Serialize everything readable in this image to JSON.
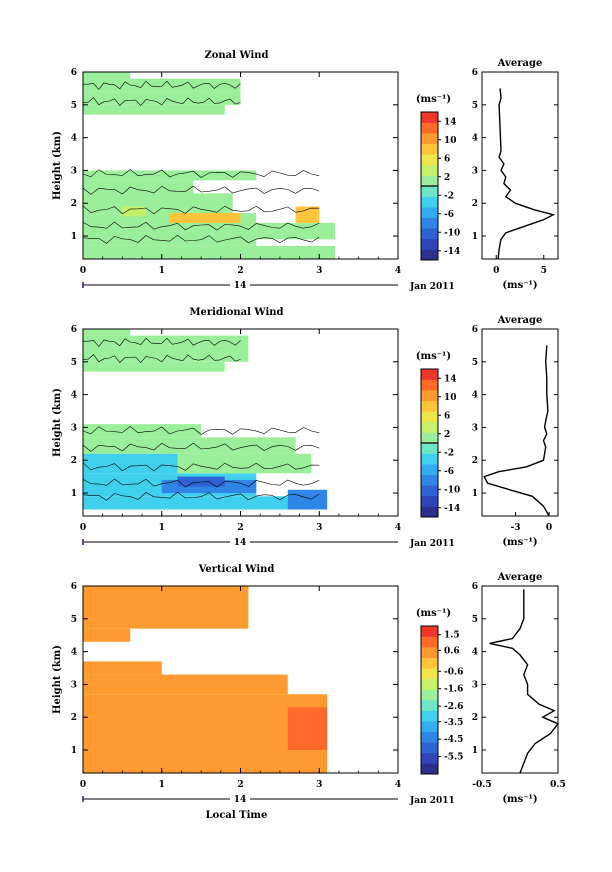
{
  "chart_data": [
    {
      "type": "heatmap",
      "title": "Zonal Wind",
      "ylabel": "Height (km)",
      "xlabel": "",
      "xlim": [
        0,
        4
      ],
      "ylim": [
        0.3,
        6
      ],
      "x_ticks": [
        "0",
        "1",
        "2",
        "3",
        "4"
      ],
      "y_ticks": [
        "1",
        "2",
        "3",
        "4",
        "5",
        "6"
      ],
      "date_label": "14",
      "date_range_label": "Jan 2011",
      "colorbar": {
        "unit": "(ms⁻¹)",
        "range": [
          -16,
          16
        ],
        "tick_labels": [
          "14",
          "10",
          "6",
          "2",
          "-2",
          "-6",
          "-10",
          "-14"
        ],
        "tick_values": [
          14,
          10,
          6,
          2,
          -2,
          -6,
          -10,
          -14
        ],
        "zero_line": 0
      },
      "cells": [
        {
          "x": [
            0.0,
            3.2
          ],
          "y": [
            0.3,
            0.7
          ],
          "v": 1
        },
        {
          "x": [
            0.0,
            2.2
          ],
          "y": [
            0.7,
            1.7
          ],
          "v": 1
        },
        {
          "x": [
            2.2,
            3.2
          ],
          "y": [
            0.9,
            1.4
          ],
          "v": 1
        },
        {
          "x": [
            0.0,
            1.9
          ],
          "y": [
            1.7,
            2.3
          ],
          "v": 1
        },
        {
          "x": [
            0.0,
            1.4
          ],
          "y": [
            2.3,
            2.7
          ],
          "v": 1
        },
        {
          "x": [
            0.0,
            2.2
          ],
          "y": [
            2.7,
            3.0
          ],
          "v": 1
        },
        {
          "x": [
            1.1,
            2.0
          ],
          "y": [
            1.4,
            1.7
          ],
          "v": 7
        },
        {
          "x": [
            2.7,
            3.0
          ],
          "y": [
            1.4,
            1.9
          ],
          "v": 8
        },
        {
          "x": [
            0.5,
            0.8
          ],
          "y": [
            1.6,
            1.9
          ],
          "v": 3
        },
        {
          "x": [
            0.0,
            1.8
          ],
          "y": [
            4.7,
            5.0
          ],
          "v": 1
        },
        {
          "x": [
            0.0,
            2.0
          ],
          "y": [
            5.0,
            5.4
          ],
          "v": 1
        },
        {
          "x": [
            0.0,
            2.0
          ],
          "y": [
            5.4,
            5.8
          ],
          "v": 1
        },
        {
          "x": [
            0.0,
            0.6
          ],
          "y": [
            5.8,
            6.0
          ],
          "v": 1
        }
      ],
      "profile": {
        "title": "Average",
        "xlabel": "(ms⁻¹)",
        "x_ticks": [
          "0",
          "5"
        ],
        "tick_values": [
          0,
          5
        ],
        "xlim": [
          -1.5,
          6.5
        ],
        "heights": [
          0.3,
          0.6,
          0.9,
          1.1,
          1.3,
          1.5,
          1.65,
          1.8,
          2.0,
          2.2,
          2.4,
          2.6,
          2.8,
          3.0,
          3.2,
          3.4,
          3.6,
          5.0,
          5.2,
          5.5
        ],
        "values": [
          0.2,
          0.3,
          0.5,
          1.0,
          3.0,
          5.0,
          6.0,
          4.0,
          2.0,
          1.0,
          1.5,
          0.8,
          1.0,
          0.5,
          0.8,
          0.3,
          0.5,
          0.3,
          0.5,
          0.4
        ]
      }
    },
    {
      "type": "heatmap",
      "title": "Meridional Wind",
      "ylabel": "Height (km)",
      "xlabel": "",
      "xlim": [
        0,
        4
      ],
      "ylim": [
        0.3,
        6
      ],
      "x_ticks": [
        "0",
        "1",
        "2",
        "3",
        "4"
      ],
      "y_ticks": [
        "1",
        "2",
        "3",
        "4",
        "5",
        "6"
      ],
      "date_label": "14",
      "date_range_label": "Jan 2011",
      "colorbar": {
        "unit": "(ms⁻¹)",
        "range": [
          -16,
          16
        ],
        "tick_labels": [
          "14",
          "10",
          "6",
          "2",
          "-2",
          "-6",
          "-10",
          "-14"
        ],
        "tick_values": [
          14,
          10,
          6,
          2,
          -2,
          -6,
          -10,
          -14
        ],
        "zero_line": 0
      },
      "cells": [
        {
          "x": [
            0.0,
            3.1
          ],
          "y": [
            0.5,
            0.9
          ],
          "v": -4
        },
        {
          "x": [
            0.0,
            2.2
          ],
          "y": [
            0.9,
            1.6
          ],
          "v": -4
        },
        {
          "x": [
            1.0,
            2.2
          ],
          "y": [
            1.0,
            1.4
          ],
          "v": -9
        },
        {
          "x": [
            1.2,
            1.8
          ],
          "y": [
            1.2,
            1.5
          ],
          "v": -11
        },
        {
          "x": [
            2.6,
            3.1
          ],
          "y": [
            0.5,
            1.1
          ],
          "v": -7
        },
        {
          "x": [
            0.0,
            1.3
          ],
          "y": [
            1.6,
            2.2
          ],
          "v": -4
        },
        {
          "x": [
            1.2,
            2.9
          ],
          "y": [
            1.6,
            2.2
          ],
          "v": 1
        },
        {
          "x": [
            0.0,
            2.7
          ],
          "y": [
            2.2,
            2.7
          ],
          "v": 1
        },
        {
          "x": [
            0.0,
            1.5
          ],
          "y": [
            2.7,
            3.1
          ],
          "v": 1
        },
        {
          "x": [
            0.0,
            1.8
          ],
          "y": [
            4.7,
            5.0
          ],
          "v": 1
        },
        {
          "x": [
            0.0,
            2.1
          ],
          "y": [
            5.0,
            5.5
          ],
          "v": 1
        },
        {
          "x": [
            0.0,
            2.1
          ],
          "y": [
            5.5,
            5.8
          ],
          "v": 1
        },
        {
          "x": [
            0.0,
            0.6
          ],
          "y": [
            5.8,
            6.0
          ],
          "v": 1
        }
      ],
      "profile": {
        "title": "Average",
        "xlabel": "(ms⁻¹)",
        "x_ticks": [
          "-3",
          "0"
        ],
        "tick_values": [
          -3,
          0
        ],
        "xlim": [
          -6,
          0.8
        ],
        "heights": [
          0.3,
          0.6,
          0.9,
          1.1,
          1.3,
          1.5,
          1.65,
          1.8,
          2.0,
          2.2,
          2.4,
          2.6,
          2.8,
          3.0,
          3.2,
          3.5,
          4.0,
          4.5,
          5.0,
          5.5
        ],
        "values": [
          0.0,
          -0.5,
          -1.5,
          -3.5,
          -5.5,
          -5.8,
          -4.5,
          -2.0,
          -0.5,
          -0.4,
          -0.3,
          -0.5,
          -0.2,
          -0.4,
          -0.3,
          -0.1,
          -0.2,
          -0.2,
          -0.3,
          -0.2
        ]
      }
    },
    {
      "type": "heatmap",
      "title": "Vertical Wind",
      "ylabel": "Height (km)",
      "xlabel": "Local Time",
      "xlim": [
        0,
        4
      ],
      "ylim": [
        0.3,
        6
      ],
      "x_ticks": [
        "0",
        "1",
        "2",
        "3",
        "4"
      ],
      "y_ticks": [
        "1",
        "2",
        "3",
        "4",
        "5",
        "6"
      ],
      "date_label": "14",
      "date_range_label": "Jan 2011",
      "colorbar": {
        "unit": "(ms⁻¹)",
        "range": [
          -6.5,
          2.0
        ],
        "tick_labels": [
          "1.5",
          "0.6",
          "-0.6",
          "-1.6",
          "-2.6",
          "-3.5",
          "-4.5",
          "-5.5"
        ],
        "tick_values": [
          1.5,
          0.6,
          -0.6,
          -1.6,
          -2.6,
          -3.5,
          -4.5,
          -5.5
        ],
        "zero_line": null
      },
      "cells": [
        {
          "x": [
            0.0,
            3.1
          ],
          "y": [
            0.3,
            2.7
          ],
          "v": 0.2
        },
        {
          "x": [
            0.0,
            2.6
          ],
          "y": [
            2.7,
            3.3
          ],
          "v": 0.2
        },
        {
          "x": [
            2.6,
            3.1
          ],
          "y": [
            1.0,
            2.3
          ],
          "v": 0.9
        },
        {
          "x": [
            0.0,
            1.0
          ],
          "y": [
            3.3,
            3.7
          ],
          "v": 0.2
        },
        {
          "x": [
            0.0,
            0.6
          ],
          "y": [
            4.3,
            4.7
          ],
          "v": 0.2
        },
        {
          "x": [
            0.0,
            2.1
          ],
          "y": [
            4.7,
            6.0
          ],
          "v": 0.2
        }
      ],
      "profile": {
        "title": "Average",
        "xlabel": "(ms⁻¹)",
        "x_ticks": [
          "-0.5",
          "0.5"
        ],
        "tick_values": [
          -0.5,
          0.5
        ],
        "xlim": [
          -0.5,
          0.5
        ],
        "heights": [
          0.3,
          0.6,
          0.9,
          1.2,
          1.5,
          1.8,
          2.0,
          2.2,
          2.4,
          2.7,
          3.0,
          3.3,
          3.6,
          3.9,
          4.1,
          4.25,
          4.4,
          4.7,
          5.0,
          5.5,
          5.9
        ],
        "values": [
          0.0,
          0.05,
          0.1,
          0.2,
          0.4,
          0.5,
          0.3,
          0.45,
          0.25,
          0.1,
          0.1,
          0.05,
          0.1,
          0.0,
          -0.1,
          -0.4,
          -0.1,
          0.0,
          0.05,
          0.05,
          0.05
        ]
      }
    }
  ]
}
